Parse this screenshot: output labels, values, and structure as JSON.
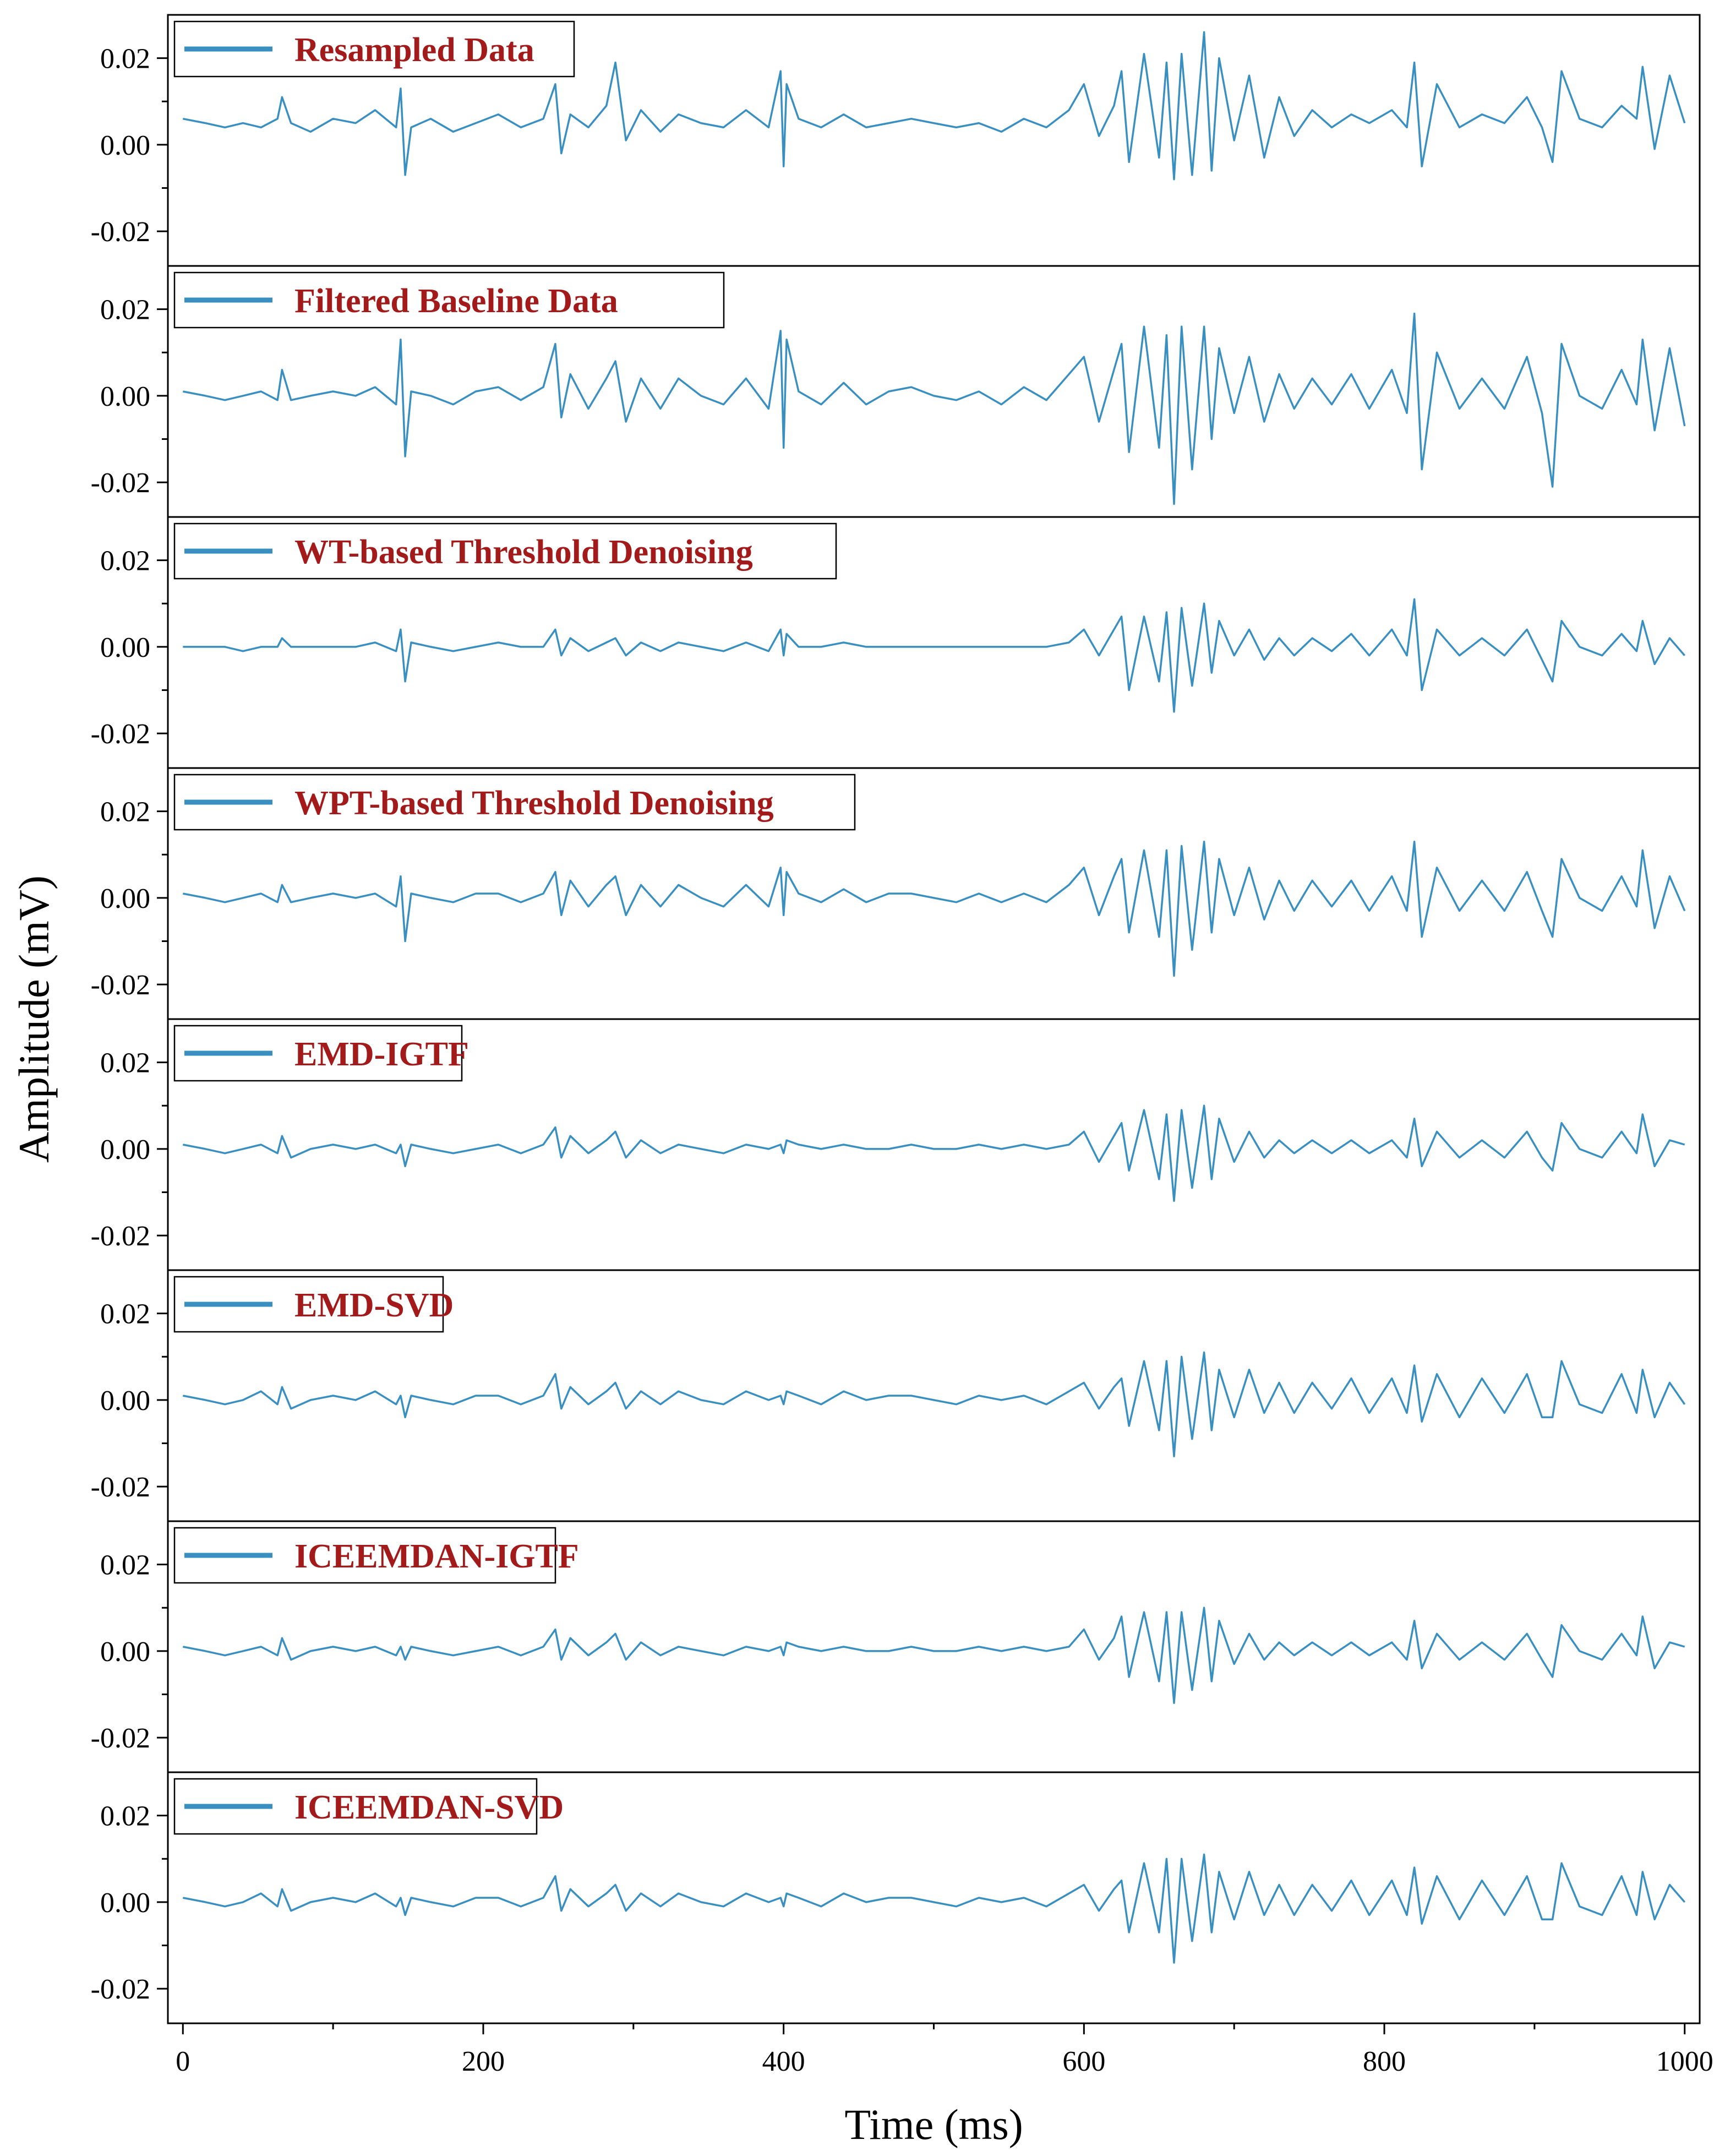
{
  "chart_data": {
    "type": "line",
    "layout": "stacked-panels",
    "xlabel": "Time (ms)",
    "ylabel": "Amplitude (mV)",
    "xlim": [
      -10,
      1010
    ],
    "ylim": [
      -0.028,
      0.03
    ],
    "x_ticks": [
      "0",
      "200",
      "400",
      "600",
      "800",
      "1000"
    ],
    "x_tick_values": [
      0,
      200,
      400,
      600,
      800,
      1000
    ],
    "y_ticks": [
      "0.02",
      "0.00",
      "-0.02"
    ],
    "y_tick_values": [
      0.02,
      0.0,
      -0.02
    ],
    "line_color": "#3a8fc1",
    "legend_text_color": "#a31a1a",
    "legend_placement": "top-left",
    "grid": false,
    "series_x": [
      0,
      15,
      28,
      40,
      52,
      63,
      66,
      72,
      85,
      100,
      115,
      128,
      142,
      145,
      148,
      152,
      165,
      180,
      195,
      210,
      225,
      240,
      248,
      252,
      258,
      270,
      282,
      288,
      295,
      305,
      318,
      330,
      345,
      360,
      375,
      390,
      398,
      400,
      402,
      410,
      425,
      440,
      455,
      470,
      485,
      500,
      515,
      530,
      545,
      560,
      575,
      590,
      600,
      610,
      620,
      625,
      630,
      640,
      650,
      655,
      660,
      665,
      672,
      680,
      685,
      690,
      700,
      710,
      720,
      730,
      740,
      752,
      765,
      778,
      790,
      805,
      815,
      820,
      825,
      835,
      850,
      865,
      880,
      895,
      905,
      912,
      918,
      930,
      945,
      958,
      968,
      972,
      980,
      990,
      1000
    ],
    "series": [
      {
        "name": "Resampled Data",
        "values": [
          0.006,
          0.005,
          0.004,
          0.005,
          0.004,
          0.006,
          0.011,
          0.005,
          0.003,
          0.006,
          0.005,
          0.008,
          0.004,
          0.013,
          -0.007,
          0.004,
          0.006,
          0.003,
          0.005,
          0.007,
          0.004,
          0.006,
          0.014,
          -0.002,
          0.007,
          0.004,
          0.009,
          0.019,
          0.001,
          0.008,
          0.003,
          0.007,
          0.005,
          0.004,
          0.008,
          0.004,
          0.017,
          -0.005,
          0.014,
          0.006,
          0.004,
          0.007,
          0.004,
          0.005,
          0.006,
          0.005,
          0.004,
          0.005,
          0.003,
          0.006,
          0.004,
          0.008,
          0.014,
          0.002,
          0.009,
          0.017,
          -0.004,
          0.021,
          -0.003,
          0.019,
          -0.008,
          0.021,
          -0.007,
          0.026,
          -0.006,
          0.02,
          0.001,
          0.016,
          -0.003,
          0.011,
          0.002,
          0.008,
          0.004,
          0.007,
          0.005,
          0.008,
          0.004,
          0.019,
          -0.005,
          0.014,
          0.004,
          0.007,
          0.005,
          0.011,
          0.004,
          -0.004,
          0.017,
          0.006,
          0.004,
          0.009,
          0.006,
          0.018,
          -0.001,
          0.016,
          0.005
        ]
      },
      {
        "name": "Filtered Baseline Data",
        "values": [
          0.001,
          0.0,
          -0.001,
          0.0,
          0.001,
          -0.001,
          0.006,
          -0.001,
          0.0,
          0.001,
          0.0,
          0.002,
          -0.002,
          0.013,
          -0.014,
          0.001,
          0.0,
          -0.002,
          0.001,
          0.002,
          -0.001,
          0.002,
          0.012,
          -0.005,
          0.005,
          -0.003,
          0.004,
          0.008,
          -0.006,
          0.004,
          -0.003,
          0.004,
          0.0,
          -0.002,
          0.004,
          -0.003,
          0.015,
          -0.012,
          0.013,
          0.001,
          -0.002,
          0.003,
          -0.002,
          0.001,
          0.002,
          0.0,
          -0.001,
          0.001,
          -0.002,
          0.002,
          -0.001,
          0.005,
          0.009,
          -0.006,
          0.006,
          0.012,
          -0.013,
          0.016,
          -0.012,
          0.014,
          -0.025,
          0.016,
          -0.017,
          0.016,
          -0.01,
          0.011,
          -0.004,
          0.009,
          -0.006,
          0.005,
          -0.003,
          0.004,
          -0.002,
          0.005,
          -0.003,
          0.006,
          -0.004,
          0.019,
          -0.017,
          0.01,
          -0.003,
          0.004,
          -0.003,
          0.009,
          -0.004,
          -0.021,
          0.012,
          0.0,
          -0.003,
          0.006,
          -0.002,
          0.013,
          -0.008,
          0.011,
          -0.007
        ]
      },
      {
        "name": "WT-based Threshold Denoising",
        "values": [
          0.0,
          0.0,
          0.0,
          -0.001,
          0.0,
          0.0,
          0.002,
          0.0,
          0.0,
          0.0,
          0.0,
          0.001,
          -0.001,
          0.004,
          -0.008,
          0.001,
          0.0,
          -0.001,
          0.0,
          0.001,
          0.0,
          0.0,
          0.004,
          -0.002,
          0.002,
          -0.001,
          0.001,
          0.002,
          -0.002,
          0.001,
          -0.001,
          0.001,
          0.0,
          -0.001,
          0.001,
          -0.001,
          0.004,
          -0.002,
          0.003,
          0.0,
          0.0,
          0.001,
          0.0,
          0.0,
          0.0,
          0.0,
          0.0,
          0.0,
          0.0,
          0.0,
          0.0,
          0.001,
          0.004,
          -0.002,
          0.004,
          0.007,
          -0.01,
          0.007,
          -0.008,
          0.008,
          -0.015,
          0.009,
          -0.009,
          0.01,
          -0.006,
          0.006,
          -0.002,
          0.004,
          -0.003,
          0.002,
          -0.002,
          0.002,
          -0.001,
          0.003,
          -0.002,
          0.004,
          -0.002,
          0.011,
          -0.01,
          0.004,
          -0.002,
          0.002,
          -0.002,
          0.004,
          -0.003,
          -0.008,
          0.006,
          0.0,
          -0.002,
          0.003,
          -0.001,
          0.006,
          -0.004,
          0.002,
          -0.002
        ]
      },
      {
        "name": "WPT-based Threshold Denoising",
        "values": [
          0.001,
          0.0,
          -0.001,
          0.0,
          0.001,
          -0.001,
          0.003,
          -0.001,
          0.0,
          0.001,
          0.0,
          0.001,
          -0.002,
          0.005,
          -0.01,
          0.001,
          0.0,
          -0.001,
          0.001,
          0.001,
          -0.001,
          0.001,
          0.006,
          -0.004,
          0.004,
          -0.002,
          0.003,
          0.005,
          -0.004,
          0.003,
          -0.002,
          0.003,
          0.0,
          -0.002,
          0.003,
          -0.002,
          0.007,
          -0.004,
          0.006,
          0.001,
          -0.001,
          0.002,
          -0.001,
          0.001,
          0.001,
          0.0,
          -0.001,
          0.001,
          -0.001,
          0.001,
          -0.001,
          0.003,
          0.007,
          -0.004,
          0.005,
          0.009,
          -0.008,
          0.011,
          -0.009,
          0.011,
          -0.018,
          0.012,
          -0.012,
          0.013,
          -0.008,
          0.009,
          -0.004,
          0.007,
          -0.005,
          0.004,
          -0.003,
          0.004,
          -0.002,
          0.004,
          -0.003,
          0.005,
          -0.003,
          0.013,
          -0.009,
          0.007,
          -0.003,
          0.004,
          -0.003,
          0.006,
          -0.003,
          -0.009,
          0.009,
          0.0,
          -0.003,
          0.005,
          -0.002,
          0.011,
          -0.007,
          0.005,
          -0.003
        ]
      },
      {
        "name": "EMD-IGTF",
        "values": [
          0.001,
          0.0,
          -0.001,
          0.0,
          0.001,
          -0.001,
          0.003,
          -0.002,
          0.0,
          0.001,
          0.0,
          0.001,
          -0.001,
          0.001,
          -0.004,
          0.001,
          0.0,
          -0.001,
          0.0,
          0.001,
          -0.001,
          0.001,
          0.005,
          -0.002,
          0.003,
          -0.001,
          0.002,
          0.004,
          -0.002,
          0.002,
          -0.001,
          0.001,
          0.0,
          -0.001,
          0.001,
          0.0,
          0.001,
          -0.001,
          0.002,
          0.001,
          0.0,
          0.001,
          0.0,
          0.0,
          0.001,
          0.0,
          0.0,
          0.001,
          0.0,
          0.001,
          0.0,
          0.001,
          0.004,
          -0.003,
          0.003,
          0.006,
          -0.005,
          0.009,
          -0.007,
          0.008,
          -0.012,
          0.009,
          -0.009,
          0.01,
          -0.007,
          0.007,
          -0.003,
          0.004,
          -0.002,
          0.002,
          -0.001,
          0.002,
          -0.001,
          0.002,
          -0.001,
          0.002,
          -0.002,
          0.007,
          -0.004,
          0.004,
          -0.002,
          0.002,
          -0.002,
          0.004,
          -0.002,
          -0.005,
          0.006,
          0.0,
          -0.002,
          0.004,
          -0.001,
          0.008,
          -0.004,
          0.002,
          0.001
        ]
      },
      {
        "name": "EMD-SVD",
        "values": [
          0.001,
          0.0,
          -0.001,
          0.0,
          0.002,
          -0.001,
          0.003,
          -0.002,
          0.0,
          0.001,
          0.0,
          0.002,
          -0.001,
          0.001,
          -0.004,
          0.001,
          0.0,
          -0.001,
          0.001,
          0.001,
          -0.001,
          0.001,
          0.006,
          -0.002,
          0.003,
          -0.001,
          0.002,
          0.004,
          -0.002,
          0.002,
          -0.001,
          0.002,
          0.0,
          -0.001,
          0.002,
          0.0,
          0.001,
          -0.001,
          0.002,
          0.001,
          -0.001,
          0.002,
          0.0,
          0.001,
          0.001,
          0.0,
          -0.001,
          0.001,
          0.0,
          0.001,
          -0.001,
          0.002,
          0.004,
          -0.002,
          0.003,
          0.005,
          -0.006,
          0.009,
          -0.007,
          0.009,
          -0.013,
          0.01,
          -0.009,
          0.011,
          -0.007,
          0.007,
          -0.004,
          0.007,
          -0.003,
          0.004,
          -0.003,
          0.004,
          -0.002,
          0.005,
          -0.003,
          0.005,
          -0.003,
          0.008,
          -0.005,
          0.006,
          -0.004,
          0.005,
          -0.003,
          0.006,
          -0.004,
          -0.004,
          0.009,
          -0.001,
          -0.003,
          0.006,
          -0.003,
          0.007,
          -0.004,
          0.004,
          -0.001
        ]
      },
      {
        "name": "ICEEMDAN-IGTF",
        "values": [
          0.001,
          0.0,
          -0.001,
          0.0,
          0.001,
          -0.001,
          0.003,
          -0.002,
          0.0,
          0.001,
          0.0,
          0.001,
          -0.001,
          0.001,
          -0.002,
          0.001,
          0.0,
          -0.001,
          0.0,
          0.001,
          -0.001,
          0.001,
          0.005,
          -0.002,
          0.003,
          -0.001,
          0.002,
          0.004,
          -0.002,
          0.002,
          -0.001,
          0.001,
          0.0,
          -0.001,
          0.001,
          0.0,
          0.001,
          -0.001,
          0.002,
          0.001,
          0.0,
          0.001,
          0.0,
          0.0,
          0.001,
          0.0,
          0.0,
          0.001,
          0.0,
          0.001,
          0.0,
          0.001,
          0.005,
          -0.002,
          0.003,
          0.008,
          -0.006,
          0.009,
          -0.007,
          0.009,
          -0.012,
          0.009,
          -0.009,
          0.01,
          -0.007,
          0.007,
          -0.003,
          0.004,
          -0.002,
          0.002,
          -0.001,
          0.002,
          -0.001,
          0.002,
          -0.001,
          0.002,
          -0.002,
          0.007,
          -0.004,
          0.004,
          -0.002,
          0.002,
          -0.002,
          0.004,
          -0.002,
          -0.006,
          0.006,
          0.0,
          -0.002,
          0.004,
          -0.001,
          0.008,
          -0.004,
          0.002,
          0.001
        ]
      },
      {
        "name": "ICEEMDAN-SVD",
        "values": [
          0.001,
          0.0,
          -0.001,
          0.0,
          0.002,
          -0.001,
          0.003,
          -0.002,
          0.0,
          0.001,
          0.0,
          0.002,
          -0.001,
          0.001,
          -0.003,
          0.001,
          0.0,
          -0.001,
          0.001,
          0.001,
          -0.001,
          0.001,
          0.006,
          -0.002,
          0.003,
          -0.001,
          0.002,
          0.004,
          -0.002,
          0.002,
          -0.001,
          0.002,
          0.0,
          -0.001,
          0.002,
          0.0,
          0.001,
          -0.001,
          0.002,
          0.001,
          -0.001,
          0.002,
          0.0,
          0.001,
          0.001,
          0.0,
          -0.001,
          0.001,
          0.0,
          0.001,
          -0.001,
          0.002,
          0.004,
          -0.002,
          0.003,
          0.005,
          -0.007,
          0.009,
          -0.007,
          0.01,
          -0.014,
          0.01,
          -0.009,
          0.011,
          -0.007,
          0.007,
          -0.004,
          0.007,
          -0.003,
          0.004,
          -0.003,
          0.004,
          -0.002,
          0.005,
          -0.003,
          0.005,
          -0.003,
          0.008,
          -0.005,
          0.006,
          -0.004,
          0.005,
          -0.003,
          0.006,
          -0.004,
          -0.004,
          0.009,
          -0.001,
          -0.003,
          0.006,
          -0.003,
          0.007,
          -0.004,
          0.004,
          0.0
        ]
      }
    ]
  }
}
